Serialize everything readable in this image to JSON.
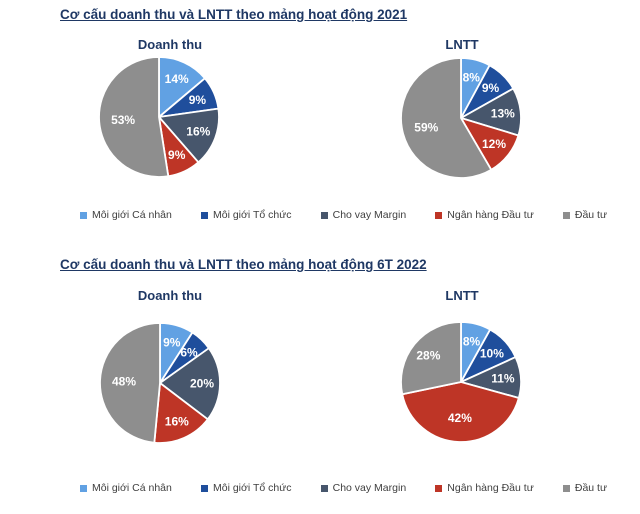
{
  "page": {
    "section_titles": [
      "Cơ cấu doanh thu và LNTT theo mảng hoạt động 2021",
      "Cơ cấu doanh thu và LNTT theo mảng hoạt động 6T 2022"
    ]
  },
  "colors": {
    "title_navy": "#1F3864",
    "slice_label_text": "#FFFFFF",
    "legend_text": "#404040",
    "background": "#FFFFFF",
    "series_light_blue": "#61A1E3",
    "series_dark_blue": "#1F4E9C",
    "series_slate": "#47566C",
    "series_red": "#BE3526",
    "series_gray": "#8E8E8E"
  },
  "legend": {
    "items": [
      {
        "label": "Môi giới Cá nhân",
        "color": "#61A1E3"
      },
      {
        "label": "Môi giới Tổ chức",
        "color": "#1F4E9C"
      },
      {
        "label": "Cho vay Margin",
        "color": "#47566C"
      },
      {
        "label": "Ngân hàng Đầu tư",
        "color": "#BE3526"
      },
      {
        "label": "Đầu tư",
        "color": "#8E8E8E"
      }
    ]
  },
  "chart_data": [
    {
      "type": "pie",
      "section": "Cơ cấu doanh thu và LNTT theo mảng hoạt động 2021",
      "title": "Doanh thu",
      "categories": [
        "Môi giới Cá nhân",
        "Môi giới Tổ chức",
        "Cho vay Margin",
        "Ngân hàng Đầu tư",
        "Đầu tư"
      ],
      "values": [
        14,
        9,
        16,
        9,
        53
      ],
      "unit": "%",
      "colors": [
        "#61A1E3",
        "#1F4E9C",
        "#47566C",
        "#BE3526",
        "#8E8E8E"
      ],
      "start_angle_deg": 0,
      "direction": "clockwise",
      "data_labels": "inside-percent",
      "legend_position": "bottom"
    },
    {
      "type": "pie",
      "section": "Cơ cấu doanh thu và LNTT theo mảng hoạt động 2021",
      "title": "LNTT",
      "categories": [
        "Môi giới Cá nhân",
        "Môi giới Tổ chức",
        "Cho vay Margin",
        "Ngân hàng Đầu tư",
        "Đầu tư"
      ],
      "values": [
        8,
        9,
        13,
        12,
        59
      ],
      "unit": "%",
      "colors": [
        "#61A1E3",
        "#1F4E9C",
        "#47566C",
        "#BE3526",
        "#8E8E8E"
      ],
      "start_angle_deg": 0,
      "direction": "clockwise",
      "data_labels": "inside-percent",
      "legend_position": "bottom"
    },
    {
      "type": "pie",
      "section": "Cơ cấu doanh thu và LNTT theo mảng hoạt động 6T 2022",
      "title": "Doanh thu",
      "categories": [
        "Môi giới Cá nhân",
        "Môi giới Tổ chức",
        "Cho vay Margin",
        "Ngân hàng Đầu tư",
        "Đầu tư"
      ],
      "values": [
        9,
        6,
        20,
        16,
        48
      ],
      "unit": "%",
      "colors": [
        "#61A1E3",
        "#1F4E9C",
        "#47566C",
        "#BE3526",
        "#8E8E8E"
      ],
      "start_angle_deg": 0,
      "direction": "clockwise",
      "data_labels": "inside-percent",
      "legend_position": "bottom"
    },
    {
      "type": "pie",
      "section": "Cơ cấu doanh thu và LNTT theo mảng hoạt động 6T 2022",
      "title": "LNTT",
      "categories": [
        "Môi giới Cá nhân",
        "Môi giới Tổ chức",
        "Cho vay Margin",
        "Ngân hàng Đầu tư",
        "Đầu tư"
      ],
      "values": [
        8,
        10,
        11,
        42,
        28
      ],
      "unit": "%",
      "colors": [
        "#61A1E3",
        "#1F4E9C",
        "#47566C",
        "#BE3526",
        "#8E8E8E"
      ],
      "start_angle_deg": 0,
      "direction": "clockwise",
      "data_labels": "inside-percent",
      "legend_position": "bottom"
    }
  ]
}
